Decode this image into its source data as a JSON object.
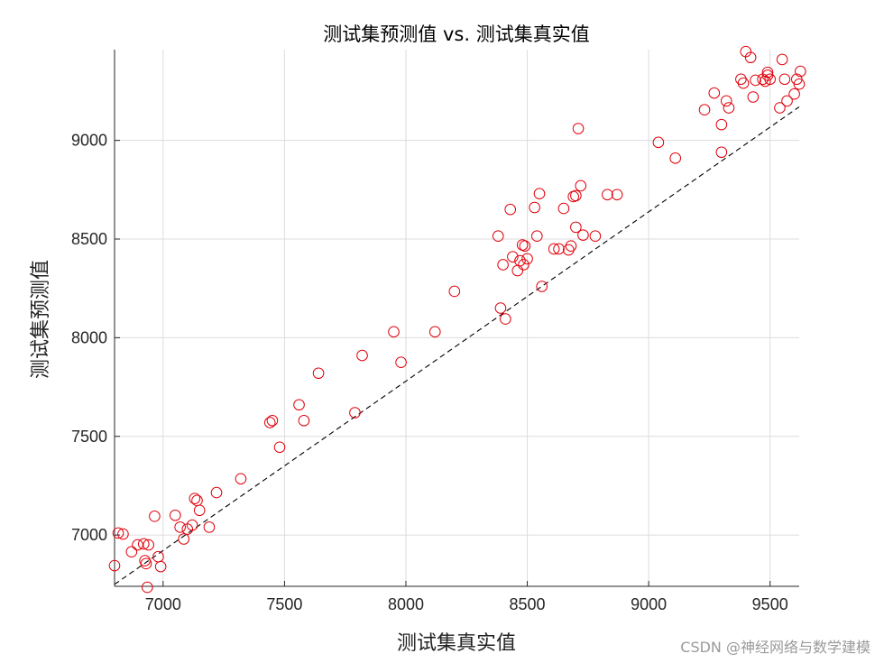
{
  "chart_data": {
    "type": "scatter",
    "title": "测试集预测值 vs. 测试集真实值",
    "xlabel": "测试集真实值",
    "ylabel": "测试集预测值",
    "xlim": [
      6800,
      9620
    ],
    "ylim": [
      6740,
      9460
    ],
    "xticks": [
      7000,
      7500,
      8000,
      8500,
      9000,
      9500
    ],
    "yticks": [
      7000,
      7500,
      8000,
      8500,
      9000
    ],
    "grid": true,
    "marker": "circle",
    "marker_color": "#e0000b",
    "reference_line": {
      "style": "dashed",
      "color": "#000000",
      "from": [
        6800,
        6750
      ],
      "to": [
        9620,
        9170
      ]
    },
    "points": [
      [
        6800,
        6845
      ],
      [
        6815,
        7010
      ],
      [
        6835,
        7005
      ],
      [
        6870,
        6915
      ],
      [
        6895,
        6950
      ],
      [
        6920,
        6955
      ],
      [
        6925,
        6870
      ],
      [
        6930,
        6855
      ],
      [
        6940,
        6950
      ],
      [
        6935,
        6735
      ],
      [
        6965,
        7095
      ],
      [
        6980,
        6890
      ],
      [
        6990,
        6840
      ],
      [
        7050,
        7100
      ],
      [
        7070,
        7040
      ],
      [
        7085,
        6980
      ],
      [
        7100,
        7030
      ],
      [
        7120,
        7050
      ],
      [
        7130,
        7185
      ],
      [
        7140,
        7175
      ],
      [
        7150,
        7125
      ],
      [
        7190,
        7040
      ],
      [
        7220,
        7215
      ],
      [
        7320,
        7285
      ],
      [
        7440,
        7570
      ],
      [
        7450,
        7580
      ],
      [
        7480,
        7445
      ],
      [
        7560,
        7660
      ],
      [
        7580,
        7580
      ],
      [
        7640,
        7820
      ],
      [
        7790,
        7620
      ],
      [
        7820,
        7910
      ],
      [
        7950,
        8030
      ],
      [
        7980,
        7875
      ],
      [
        8120,
        8030
      ],
      [
        8200,
        8235
      ],
      [
        8380,
        8515
      ],
      [
        8390,
        8150
      ],
      [
        8400,
        8370
      ],
      [
        8410,
        8095
      ],
      [
        8430,
        8650
      ],
      [
        8440,
        8410
      ],
      [
        8460,
        8340
      ],
      [
        8470,
        8390
      ],
      [
        8480,
        8470
      ],
      [
        8485,
        8370
      ],
      [
        8490,
        8465
      ],
      [
        8500,
        8400
      ],
      [
        8530,
        8660
      ],
      [
        8540,
        8515
      ],
      [
        8550,
        8730
      ],
      [
        8560,
        8260
      ],
      [
        8610,
        8450
      ],
      [
        8630,
        8450
      ],
      [
        8650,
        8655
      ],
      [
        8670,
        8445
      ],
      [
        8680,
        8465
      ],
      [
        8690,
        8715
      ],
      [
        8700,
        8720
      ],
      [
        8700,
        8560
      ],
      [
        8710,
        9060
      ],
      [
        8720,
        8770
      ],
      [
        8730,
        8520
      ],
      [
        8780,
        8515
      ],
      [
        8830,
        8725
      ],
      [
        8870,
        8725
      ],
      [
        9040,
        8990
      ],
      [
        9110,
        8910
      ],
      [
        9230,
        9155
      ],
      [
        9270,
        9240
      ],
      [
        9300,
        9080
      ],
      [
        9300,
        8940
      ],
      [
        9320,
        9200
      ],
      [
        9330,
        9165
      ],
      [
        9380,
        9310
      ],
      [
        9390,
        9290
      ],
      [
        9400,
        9450
      ],
      [
        9420,
        9420
      ],
      [
        9430,
        9220
      ],
      [
        9440,
        9305
      ],
      [
        9470,
        9310
      ],
      [
        9480,
        9300
      ],
      [
        9490,
        9330
      ],
      [
        9490,
        9345
      ],
      [
        9500,
        9310
      ],
      [
        9540,
        9165
      ],
      [
        9550,
        9410
      ],
      [
        9560,
        9310
      ],
      [
        9570,
        9200
      ],
      [
        9600,
        9235
      ],
      [
        9610,
        9310
      ],
      [
        9620,
        9285
      ],
      [
        9625,
        9350
      ]
    ]
  },
  "watermark": "CSDN @神经网络与数学建模"
}
